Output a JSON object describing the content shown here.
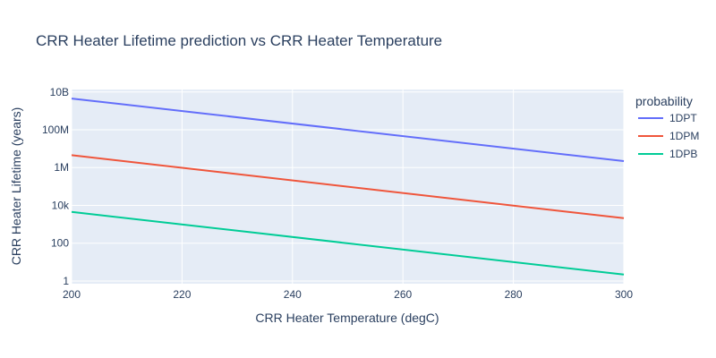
{
  "chart_data": {
    "type": "line",
    "title": "CRR Heater Lifetime prediction vs CRR Heater Temperature",
    "xlabel": "CRR Heater Temperature (degC)",
    "ylabel": "CRR Heater Lifetime (years)",
    "xlim": [
      200,
      300
    ],
    "ylim": [
      0.72,
      13500000000
    ],
    "yscale": "log",
    "x_ticks": [
      200,
      220,
      240,
      260,
      280,
      300
    ],
    "x_tick_labels": [
      "200",
      "220",
      "240",
      "260",
      "280",
      "300"
    ],
    "y_ticks": [
      1,
      100,
      10000,
      1000000,
      100000000,
      10000000000
    ],
    "y_tick_labels": [
      "1",
      "100",
      "10k",
      "1M",
      "100M",
      "10B"
    ],
    "grid": true,
    "legend_title": "probability",
    "legend_position": "right",
    "series": [
      {
        "name": "1DPT",
        "color": "#636efa",
        "x": [
          200,
          300
        ],
        "y": [
          4500000000,
          2200000
        ]
      },
      {
        "name": "1DPM",
        "color": "#ef553b",
        "x": [
          200,
          300
        ],
        "y": [
          4500000,
          2100
        ]
      },
      {
        "name": "1DPB",
        "color": "#00cc96",
        "x": [
          200,
          300
        ],
        "y": [
          4500,
          2.2
        ]
      }
    ]
  }
}
